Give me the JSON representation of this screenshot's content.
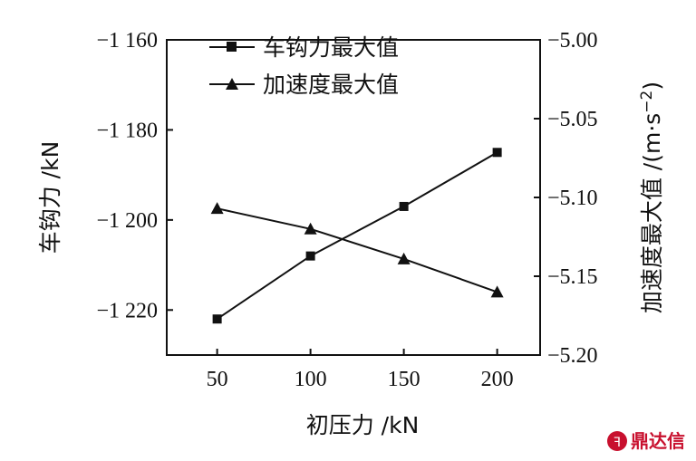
{
  "chart_data": {
    "type": "line",
    "x": [
      50,
      100,
      150,
      200
    ],
    "xlabel": "初压力 /kN",
    "ylabel_left": "车钩力 /kN",
    "ylabel_right": "加速度最大值 /(m·s",
    "ylabel_right_sup": "−2",
    "ylabel_right_close": ")",
    "xlim": [
      23,
      223
    ],
    "ylim_left": [
      -1230,
      -1160
    ],
    "ylim_right": [
      -5.2,
      -5.0
    ],
    "x_ticks": [
      50,
      100,
      150,
      200
    ],
    "x_tick_labels": [
      "50",
      "100",
      "150",
      "200"
    ],
    "y_left_ticks": [
      -1160,
      -1180,
      -1200,
      -1220
    ],
    "y_left_tick_labels": [
      "−1 160",
      "−1 180",
      "−1 200",
      "−1 220"
    ],
    "y_right_ticks": [
      -5.0,
      -5.05,
      -5.1,
      -5.15,
      -5.2
    ],
    "y_right_tick_labels": [
      "−5.00",
      "−5.05",
      "−5.10",
      "−5.15",
      "−5.20"
    ],
    "legend_position": "top-left",
    "grid": false,
    "series": [
      {
        "name": "车钩力最大值",
        "axis": "left",
        "marker": "square",
        "values": [
          -1222,
          -1208,
          -1197,
          -1185
        ]
      },
      {
        "name": "加速度最大值",
        "axis": "right",
        "marker": "triangle",
        "values": [
          -5.107,
          -5.12,
          -5.139,
          -5.16
        ]
      }
    ]
  },
  "watermark": {
    "text": "鼎达信"
  }
}
